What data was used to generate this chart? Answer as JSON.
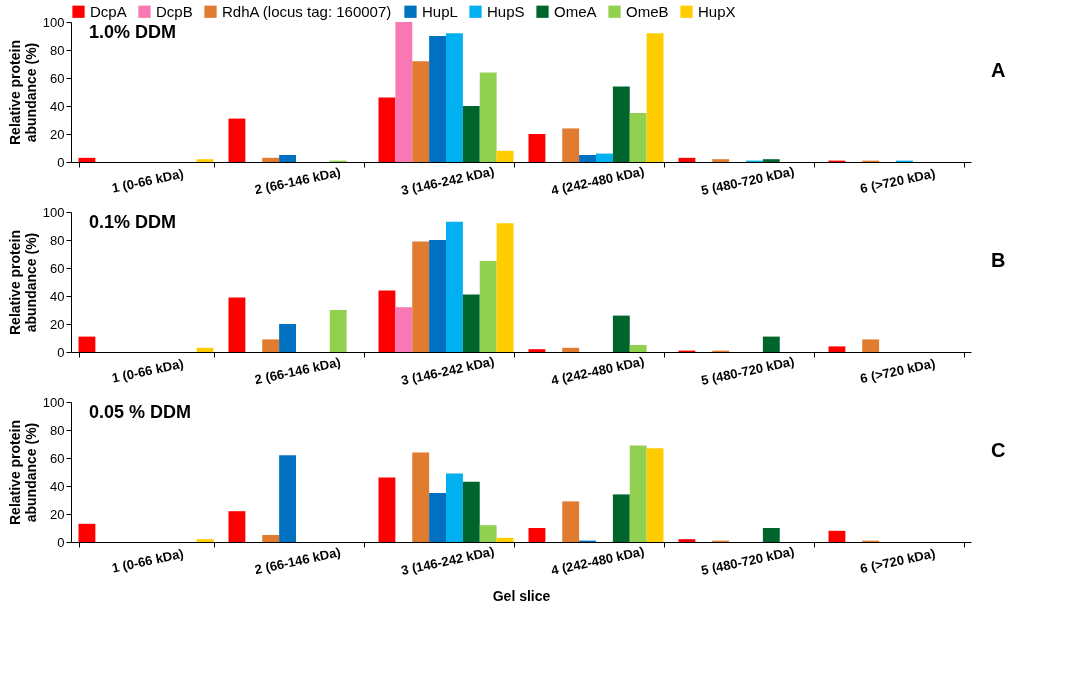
{
  "chart_data": [
    {
      "type": "bar",
      "title": "1.0% DDM",
      "ylabel": "Relative protein abundance (%)",
      "annotations": [
        "A"
      ],
      "legend": "top",
      "grid": false,
      "categories": [
        "1 (0-66 kDa)",
        "2 (66-146 kDa)",
        "3 (146-242 kDa)",
        "4 (242-480 kDa)",
        "5 (480-720 kDa)",
        "6 (>720 kDa)"
      ],
      "ylim": [
        0,
        100
      ],
      "yticks": [
        0,
        20,
        40,
        60,
        80,
        100
      ],
      "series": [
        {
          "name": "DcpA",
          "color": "#ff0000",
          "values": [
            3,
            31,
            46,
            20,
            3,
            1
          ]
        },
        {
          "name": "DcpB",
          "color": "#f878b4",
          "values": [
            null,
            null,
            100,
            null,
            null,
            null
          ]
        },
        {
          "name": "RdhA (locus tag: 160007)",
          "color": "#e07b30",
          "values": [
            null,
            3,
            72,
            24,
            2,
            1
          ]
        },
        {
          "name": "HupL",
          "color": "#0070c0",
          "values": [
            null,
            5,
            90,
            5,
            null,
            null
          ]
        },
        {
          "name": "HupS",
          "color": "#00b0f0",
          "values": [
            null,
            null,
            92,
            6,
            1,
            1
          ]
        },
        {
          "name": "OmeA",
          "color": "#00642d",
          "values": [
            null,
            null,
            40,
            54,
            2,
            null
          ]
        },
        {
          "name": "OmeB",
          "color": "#92d050",
          "values": [
            null,
            1,
            64,
            35,
            null,
            null
          ]
        },
        {
          "name": "HupX",
          "color": "#ffcc00",
          "values": [
            2,
            null,
            8,
            92,
            null,
            null
          ]
        }
      ]
    },
    {
      "type": "bar",
      "title": "0.1% DDM",
      "ylabel": "Relative protein abundance (%)",
      "annotations": [
        "B"
      ],
      "grid": false,
      "categories": [
        "1 (0-66 kDa)",
        "2 (66-146 kDa)",
        "3 (146-242 kDa)",
        "4 (242-480 kDa)",
        "5 (480-720 kDa)",
        "6 (>720 kDa)"
      ],
      "ylim": [
        0,
        100
      ],
      "yticks": [
        0,
        20,
        40,
        60,
        80,
        100
      ],
      "series": [
        {
          "color": "#ff0000",
          "values": [
            11,
            39,
            44,
            2,
            1,
            4
          ]
        },
        {
          "color": "#f878b4",
          "values": [
            null,
            null,
            32,
            null,
            null,
            null
          ]
        },
        {
          "color": "#e07b30",
          "values": [
            null,
            9,
            79,
            3,
            1,
            9
          ]
        },
        {
          "color": "#0070c0",
          "values": [
            null,
            20,
            80,
            null,
            null,
            null
          ]
        },
        {
          "color": "#00b0f0",
          "values": [
            null,
            null,
            93,
            null,
            null,
            null
          ]
        },
        {
          "color": "#00642d",
          "values": [
            null,
            null,
            41,
            26,
            11,
            null
          ]
        },
        {
          "color": "#92d050",
          "values": [
            null,
            30,
            65,
            5,
            null,
            null
          ]
        },
        {
          "color": "#ffcc00",
          "values": [
            3,
            null,
            92,
            null,
            null,
            null
          ]
        }
      ]
    },
    {
      "type": "bar",
      "title": "0.05 % DDM",
      "ylabel": "Relative protein abundance (%)",
      "xlabel": "Gel slice",
      "annotations": [
        "C"
      ],
      "grid": false,
      "categories": [
        "1 (0-66 kDa)",
        "2 (66-146 kDa)",
        "3 (146-242 kDa)",
        "4 (242-480 kDa)",
        "5 (480-720 kDa)",
        "6 (>720 kDa)"
      ],
      "ylim": [
        0,
        100
      ],
      "yticks": [
        0,
        20,
        40,
        60,
        80,
        100
      ],
      "series": [
        {
          "color": "#ff0000",
          "values": [
            13,
            22,
            46,
            10,
            2,
            8
          ]
        },
        {
          "color": "#f878b4",
          "values": [
            null,
            null,
            null,
            null,
            null,
            null
          ]
        },
        {
          "color": "#e07b30",
          "values": [
            null,
            5,
            64,
            29,
            1,
            1
          ]
        },
        {
          "color": "#0070c0",
          "values": [
            null,
            62,
            35,
            1,
            null,
            null
          ]
        },
        {
          "color": "#00b0f0",
          "values": [
            null,
            null,
            49,
            null,
            null,
            null
          ]
        },
        {
          "color": "#00642d",
          "values": [
            null,
            null,
            43,
            34,
            10,
            null
          ]
        },
        {
          "color": "#92d050",
          "values": [
            null,
            null,
            12,
            69,
            null,
            null
          ]
        },
        {
          "color": "#ffcc00",
          "values": [
            2,
            null,
            3,
            67,
            null,
            null
          ]
        }
      ]
    }
  ]
}
